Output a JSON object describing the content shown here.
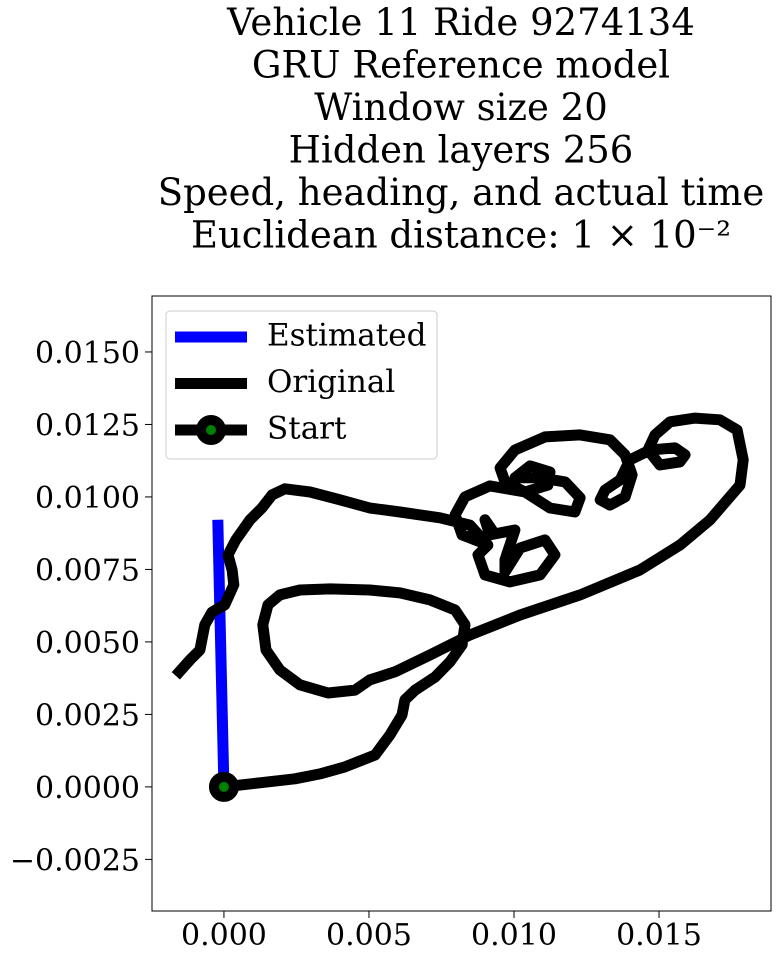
{
  "chart_data": {
    "type": "line",
    "title": [
      "Vehicle 11 Ride 9274134",
      "GRU Reference model",
      "Window size 20",
      "Hidden layers 256",
      "Speed, heading, and actual time",
      "Euclidean distance: 1 × 10⁻²"
    ],
    "xlim": [
      -0.00248,
      0.01886
    ],
    "ylim": [
      -0.00428,
      0.01693
    ],
    "xticks": [
      {
        "value": 0,
        "label": "0.000"
      },
      {
        "value": 0.005,
        "label": "0.005"
      },
      {
        "value": 0.01,
        "label": "0.010"
      },
      {
        "value": 0.015,
        "label": "0.015"
      }
    ],
    "yticks": [
      {
        "value": -0.0025,
        "label": "−0.0025"
      },
      {
        "value": 0,
        "label": "0.0000"
      },
      {
        "value": 0.0025,
        "label": "0.0025"
      },
      {
        "value": 0.005,
        "label": "0.0050"
      },
      {
        "value": 0.0075,
        "label": "0.0075"
      },
      {
        "value": 0.01,
        "label": "0.0100"
      },
      {
        "value": 0.0125,
        "label": "0.0125"
      },
      {
        "value": 0.015,
        "label": "0.0150"
      }
    ],
    "grid": false,
    "legend": "upper left",
    "series": [
      {
        "name": "Estimated",
        "color": "#0000ff",
        "x": [
          -0.00021,
          0
        ],
        "values": [
          0.00921,
          0
        ]
      },
      {
        "name": "Original",
        "color": "#000000",
        "x": [
          0,
          0.00124,
          0.00245,
          0.00331,
          0.00417,
          0.00521,
          0.00572,
          0.00614,
          0.00624,
          0.00659,
          0.00728,
          0.00779,
          0.00821,
          0.00831,
          0.00797,
          0.0071,
          0.00607,
          0.00503,
          0.00366,
          0.00262,
          0.00193,
          0.00152,
          0.00134,
          0.00145,
          0.00193,
          0.00262,
          0.00359,
          0.00452,
          0.00503,
          0.0059,
          0.0071,
          0.00848,
          0.01021,
          0.01228,
          0.01434,
          0.01572,
          0.01676,
          0.01779,
          0.0179,
          0.01769,
          0.0171,
          0.01624,
          0.01538,
          0.01486,
          0.01462,
          0.01503,
          0.01572,
          0.0159,
          0.01555,
          0.01469,
          0.014,
          0.01366,
          0.01314,
          0.01297,
          0.01331,
          0.01383,
          0.01407,
          0.01383,
          0.01331,
          0.01228,
          0.01107,
          0.01003,
          0.00952,
          0.00969,
          0.01038,
          0.01117,
          0.01124,
          0.01055,
          0.01003,
          0.0109,
          0.01176,
          0.01228,
          0.0121,
          0.01124,
          0.01038,
          0.00917,
          0.00831,
          0.00797,
          0.00821,
          0.00883,
          0.00924,
          0.009,
          0.00917,
          0.01003,
          0.00969,
          0.00969,
          0.01021,
          0.01107,
          0.01141,
          0.0109,
          0.00986,
          0.009,
          0.00876,
          0.0091,
          0.00848,
          0.00745,
          0.00607,
          0.00503,
          0.004,
          0.00297,
          0.0021,
          0.00166,
          0.00131,
          0.0009,
          0.00041,
          0.00014,
          0.00028,
          0.00034,
          3e-05,
          -0.00041,
          -0.00066,
          -0.00083,
          -0.00117,
          -0.00166
        ],
        "values": [
          0,
          0.00014,
          0.00028,
          0.00045,
          0.00069,
          0.0011,
          0.00179,
          0.00248,
          0.003,
          0.00334,
          0.00379,
          0.00431,
          0.0049,
          0.00559,
          0.0061,
          0.00645,
          0.00669,
          0.00679,
          0.00683,
          0.00679,
          0.00662,
          0.00628,
          0.00559,
          0.00472,
          0.00403,
          0.00352,
          0.00324,
          0.00334,
          0.00369,
          0.00397,
          0.00455,
          0.00524,
          0.00593,
          0.00662,
          0.00748,
          0.00834,
          0.00921,
          0.01041,
          0.01128,
          0.01231,
          0.01266,
          0.01272,
          0.01259,
          0.01214,
          0.01162,
          0.0111,
          0.01121,
          0.01145,
          0.01169,
          0.01162,
          0.01128,
          0.01059,
          0.01024,
          0.0099,
          0.00972,
          0.01,
          0.01076,
          0.01145,
          0.01197,
          0.01214,
          0.01207,
          0.01162,
          0.011,
          0.01052,
          0.01017,
          0.01041,
          0.01086,
          0.01107,
          0.01066,
          0.01066,
          0.01052,
          0.00997,
          0.00948,
          0.00962,
          0.01017,
          0.01038,
          0.01,
          0.00938,
          0.00869,
          0.00845,
          0.00886,
          0.00921,
          0.00869,
          0.00886,
          0.00783,
          0.00741,
          0.00824,
          0.00852,
          0.008,
          0.00731,
          0.00707,
          0.00731,
          0.008,
          0.00834,
          0.00903,
          0.00928,
          0.00948,
          0.00962,
          0.0099,
          0.01017,
          0.01028,
          0.01007,
          0.00962,
          0.00921,
          0.00852,
          0.008,
          0.00748,
          0.00697,
          0.00628,
          0.00603,
          0.00559,
          0.00472,
          0.00438,
          0.00383
        ]
      },
      {
        "name": "Start",
        "color": "#008000",
        "x": [
          0
        ],
        "values": [
          0
        ]
      }
    ]
  }
}
